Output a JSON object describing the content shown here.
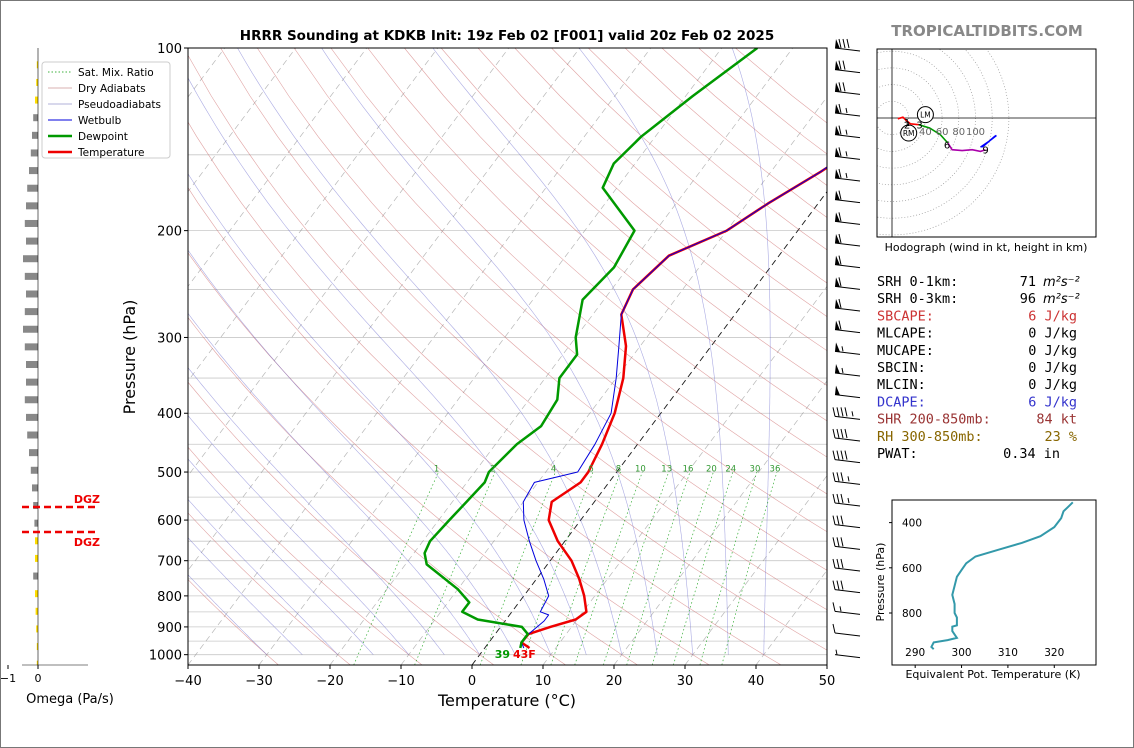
{
  "title": "HRRR Sounding at KDKB Init: 19z Feb 02 [F001] valid 20z Feb 02 2025",
  "brand": "TROPICALTIDBITS.COM",
  "chart_data": [
    {
      "type": "line",
      "name": "skew-t",
      "xlabel": "Temperature (°C)",
      "ylabel": "Pressure (hPa)",
      "xlim": [
        -40,
        50
      ],
      "ylim": [
        1040,
        100
      ],
      "y_scale": "log",
      "x_ticks": [
        "−40",
        "−30",
        "−20",
        "−10",
        "0",
        "10",
        "20",
        "30",
        "40",
        "50"
      ],
      "y_ticks": [
        "100",
        "200",
        "300",
        "400",
        "500",
        "600",
        "700",
        "800",
        "900",
        "1000"
      ],
      "mixing_ratio_labels": [
        "1",
        "2",
        "4",
        "6",
        "8",
        "10",
        "13",
        "16",
        "20",
        "24",
        "30",
        "36"
      ],
      "legend_position": "top-left",
      "legend": [
        "Sat. Mix. Ratio",
        "Dry Adiabats",
        "Pseudoadiabats",
        "Wetbulb",
        "Dewpoint",
        "Temperature"
      ],
      "surface_labels": {
        "dewpoint": "39",
        "temperature": "43F"
      },
      "series": [
        {
          "name": "Temperature",
          "color": "#ee0000",
          "points": [
            [
              6.3,
              975
            ],
            [
              4.6,
              955
            ],
            [
              4.7,
              925
            ],
            [
              7.0,
              900
            ],
            [
              9.8,
              875
            ],
            [
              10.5,
              850
            ],
            [
              8.5,
              800
            ],
            [
              6,
              750
            ],
            [
              3,
              700
            ],
            [
              -1,
              650
            ],
            [
              -4.5,
              600
            ],
            [
              -6,
              560
            ],
            [
              -4,
              520
            ],
            [
              -4,
              500
            ],
            [
              -5,
              450
            ],
            [
              -6.5,
              400
            ],
            [
              -9,
              350
            ],
            [
              -12,
              310
            ],
            [
              -16,
              275
            ],
            [
              -17,
              250
            ],
            [
              -15.5,
              220
            ],
            [
              -10,
              200
            ],
            [
              -7,
              180
            ],
            [
              -3,
              160
            ],
            [
              1,
              140
            ],
            [
              4,
              125
            ],
            [
              5.5,
              115
            ],
            [
              6.5,
              100
            ]
          ]
        },
        {
          "name": "Wetbulb",
          "color": "#0000dd",
          "points": [
            [
              5.5,
              975
            ],
            [
              4.6,
              955
            ],
            [
              4.7,
              925
            ],
            [
              5.5,
              880
            ],
            [
              5.5,
              860
            ],
            [
              4,
              850
            ],
            [
              3.5,
              800
            ],
            [
              1,
              750
            ],
            [
              -2,
              700
            ],
            [
              -5,
              650
            ],
            [
              -8,
              600
            ],
            [
              -10,
              560
            ],
            [
              -10.5,
              520
            ],
            [
              -5.5,
              500
            ],
            [
              -6,
              450
            ],
            [
              -7,
              400
            ],
            [
              -10,
              350
            ],
            [
              -13,
              310
            ],
            [
              -16,
              275
            ],
            [
              -17,
              250
            ],
            [
              -15.5,
              220
            ],
            [
              -10,
              200
            ],
            [
              -7,
              180
            ],
            [
              -3,
              160
            ],
            [
              0,
              140
            ],
            [
              3,
              125
            ],
            [
              4,
              115
            ],
            [
              6,
              100
            ]
          ]
        },
        {
          "name": "Dewpoint",
          "color": "#009900",
          "points": [
            [
              5,
              975
            ],
            [
              4.6,
              955
            ],
            [
              4.6,
              925
            ],
            [
              3,
              900
            ],
            [
              -4,
              875
            ],
            [
              -7,
              850
            ],
            [
              -7,
              820
            ],
            [
              -10,
              780
            ],
            [
              -17,
              710
            ],
            [
              -18.5,
              680
            ],
            [
              -19,
              650
            ],
            [
              -18.5,
              600
            ],
            [
              -18,
              560
            ],
            [
              -17.5,
              520
            ],
            [
              -18,
              500
            ],
            [
              -17,
              450
            ],
            [
              -15.5,
              420
            ],
            [
              -16,
              380
            ],
            [
              -18,
              350
            ],
            [
              -18,
              320
            ],
            [
              -20,
              300
            ],
            [
              -23,
              260
            ],
            [
              -22,
              230
            ],
            [
              -23,
              200
            ],
            [
              -32,
              170
            ],
            [
              -33,
              155
            ],
            [
              -32,
              140
            ],
            [
              -29,
              120
            ],
            [
              -25,
              100
            ]
          ]
        }
      ],
      "wind_barbs_kt": [
        80,
        70,
        70,
        65,
        65,
        65,
        65,
        60,
        60,
        60,
        60,
        60,
        60,
        60,
        55,
        55,
        50,
        45,
        40,
        40,
        35,
        35,
        30,
        30,
        30,
        30,
        15,
        10,
        5
      ]
    },
    {
      "type": "line",
      "name": "hodograph",
      "caption": "Hodograph (wind in kt, height in km)",
      "ring_labels": [
        "20",
        "40",
        "60",
        "80",
        "100"
      ],
      "markers": [
        {
          "label": "LM",
          "x": 40,
          "y": 4
        },
        {
          "label": "RM",
          "x": 20,
          "y": -18
        }
      ],
      "height_labels": [
        {
          "label": "1",
          "x": 18,
          "y": -5
        },
        {
          "label": "2",
          "x": 18,
          "y": -8
        },
        {
          "label": "3",
          "x": 33,
          "y": -8
        },
        {
          "label": "6",
          "x": 66,
          "y": -32
        },
        {
          "label": "9",
          "x": 112,
          "y": -38
        }
      ],
      "series": [
        {
          "name": "0-1 km",
          "color": "#ff0000",
          "points": [
            [
              7,
              -1
            ],
            [
              13,
              1
            ],
            [
              16,
              -2
            ]
          ]
        },
        {
          "name": "1-3 km",
          "color": "#ff0000",
          "points": [
            [
              16,
              -2
            ],
            [
              22,
              -7
            ],
            [
              32,
              -8
            ]
          ]
        },
        {
          "name": "3-6 km",
          "color": "#009900",
          "points": [
            [
              32,
              -8
            ],
            [
              45,
              -12
            ],
            [
              58,
              -20
            ],
            [
              67,
              -30
            ]
          ]
        },
        {
          "name": "6-9 km",
          "color": "#aa00aa",
          "points": [
            [
              67,
              -30
            ],
            [
              72,
              -38
            ],
            [
              84,
              -39
            ],
            [
              96,
              -38
            ],
            [
              106,
              -40
            ],
            [
              112,
              -38
            ]
          ]
        },
        {
          "name": "9-12 km",
          "color": "#0000ff",
          "points": [
            [
              108,
              -35
            ],
            [
              123,
              -22
            ],
            [
              125,
              -21
            ],
            [
              116,
              -28
            ],
            [
              106,
              -35
            ]
          ]
        }
      ]
    },
    {
      "type": "line",
      "name": "theta-e",
      "xlabel": "Equivalent Pot. Temperature (K)",
      "ylabel": "Pressure (hPa)",
      "x_ticks": [
        "290",
        "300",
        "310",
        "320"
      ],
      "y_ticks": [
        "400",
        "600",
        "800"
      ],
      "xlim": [
        285,
        329
      ],
      "ylim": [
        1030,
        300
      ],
      "series": [
        {
          "name": "theta-e",
          "color": "#3399aa",
          "points": [
            [
              294,
              960
            ],
            [
              293.5,
              950
            ],
            [
              294,
              930
            ],
            [
              297,
              920
            ],
            [
              299,
              910
            ],
            [
              298,
              880
            ],
            [
              298,
              860
            ],
            [
              299,
              855
            ],
            [
              299,
              820
            ],
            [
              298.5,
              800
            ],
            [
              298.5,
              760
            ],
            [
              298,
              720
            ],
            [
              298.5,
              680
            ],
            [
              299,
              640
            ],
            [
              300,
              610
            ],
            [
              301,
              580
            ],
            [
              303,
              550
            ],
            [
              308,
              520
            ],
            [
              313,
              490
            ],
            [
              317,
              460
            ],
            [
              320,
              420
            ],
            [
              321.5,
              380
            ],
            [
              322,
              350
            ],
            [
              323,
              330
            ],
            [
              324,
              310
            ]
          ]
        }
      ]
    },
    {
      "type": "bar",
      "name": "omega",
      "xlabel": "Omega (Pa/s)",
      "x_ticks": [
        "0",
        "−1",
        "−2"
      ],
      "dgz_label": "DGZ",
      "values": [
        0.02,
        0.03,
        0.05,
        0.08,
        0.1,
        0.12,
        0.15,
        0.18,
        0.2,
        0.22,
        0.2,
        0.25,
        0.22,
        0.2,
        0.22,
        0.25,
        0.22,
        0.2,
        0.2,
        0.22,
        0.2,
        0.18,
        0.15,
        0.12,
        0.1,
        0.08,
        0.06,
        0.05,
        0.05,
        0.08,
        0.05,
        0.04,
        0.03,
        0.02,
        0.02
      ]
    }
  ],
  "indices": [
    {
      "label": "SRH 0-1km:",
      "value": "71",
      "unit": "m²s⁻²",
      "color": "#000000"
    },
    {
      "label": "SRH 0-3km:",
      "value": "96",
      "unit": "m²s⁻²",
      "color": "#000000"
    },
    {
      "label": "SBCAPE:",
      "value": "6 J/kg",
      "unit": "",
      "color": "#cc3333"
    },
    {
      "label": "MLCAPE:",
      "value": "0 J/kg",
      "unit": "",
      "color": "#000000"
    },
    {
      "label": "MUCAPE:",
      "value": "0 J/kg",
      "unit": "",
      "color": "#000000"
    },
    {
      "label": "SBCIN:",
      "value": "0 J/kg",
      "unit": "",
      "color": "#000000"
    },
    {
      "label": "MLCIN:",
      "value": "0 J/kg",
      "unit": "",
      "color": "#000000"
    },
    {
      "label": "DCAPE:",
      "value": "6 J/kg",
      "unit": "",
      "color": "#3333cc"
    },
    {
      "label": "SHR 200-850mb:",
      "value": "84 kt",
      "unit": "",
      "color": "#993333"
    },
    {
      "label": "RH 300-850mb:",
      "value": "23 %",
      "unit": "",
      "color": "#886600"
    },
    {
      "label": "PWAT:",
      "value": "0.34 in",
      "unit": "",
      "color": "#000000"
    }
  ]
}
